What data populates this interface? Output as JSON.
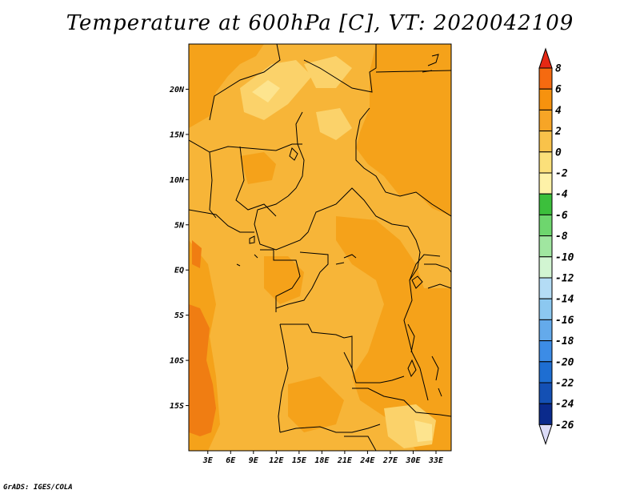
{
  "title": "Temperature at 600hPa [C], VT: 2020042109",
  "credit": "GrADS: IGES/COLA",
  "axes": {
    "lat_labels": [
      "20N",
      "15N",
      "10N",
      "5N",
      "EQ",
      "5S",
      "10S",
      "15S"
    ],
    "lat_values": [
      20,
      15,
      10,
      5,
      0,
      -5,
      -10,
      -15
    ],
    "lon_labels": [
      "3E",
      "6E",
      "9E",
      "12E",
      "15E",
      "18E",
      "21E",
      "24E",
      "27E",
      "30E",
      "33E"
    ],
    "lon_values": [
      3,
      6,
      9,
      12,
      15,
      18,
      21,
      24,
      27,
      30,
      33
    ],
    "lon_range": [
      0.5,
      35
    ],
    "lat_range": [
      -20,
      25
    ]
  },
  "colorbar": {
    "labels": [
      "8",
      "6",
      "4",
      "2",
      "0",
      "-2",
      "-4",
      "-6",
      "-8",
      "-10",
      "-12",
      "-14",
      "-16",
      "-18",
      "-20",
      "-22",
      "-24",
      "-26"
    ],
    "colors": [
      "#f03c12",
      "#f56a10",
      "#f6920e",
      "#f7a526",
      "#f9c24a",
      "#fbe07a",
      "#fef2a8",
      "#3cbf3c",
      "#6ed66e",
      "#a0e6a0",
      "#d2f5d2",
      "#b4dcf5",
      "#8cc8f0",
      "#64aaeb",
      "#3c8ce6",
      "#1e6ed2",
      "#1450b4",
      "#0a2a8c",
      "#000a50"
    ],
    "top_color": "#e62814",
    "bottom_color": "#dcdcf8"
  },
  "field_colors": {
    "base": "#f7b538",
    "warm": "#f5a21a",
    "warmer": "#f07d12",
    "cool": "#fbd26a",
    "coolest": "#fde48e"
  }
}
